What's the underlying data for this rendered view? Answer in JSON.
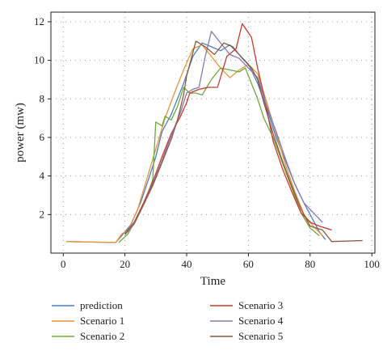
{
  "chart_data": {
    "type": "line",
    "xlabel": "Time",
    "ylabel": "power (mw)",
    "xlim": [
      -4,
      101
    ],
    "ylim": [
      0.0,
      12.5
    ],
    "xticks": [
      0,
      20,
      40,
      60,
      80,
      100
    ],
    "yticks": [
      2,
      4,
      6,
      8,
      10,
      12
    ],
    "grid": "dotted",
    "legend_position": "bottom",
    "series": [
      {
        "name": "prediction",
        "color": "#4a7fc4",
        "points": [
          [
            1,
            0.6
          ],
          [
            17,
            0.55
          ],
          [
            20,
            1.1
          ],
          [
            22,
            1.5
          ],
          [
            25,
            2.6
          ],
          [
            28,
            4.0
          ],
          [
            30,
            5.0
          ],
          [
            32,
            6.3
          ],
          [
            35,
            7.2
          ],
          [
            37,
            8.0
          ],
          [
            39,
            8.8
          ],
          [
            42,
            10.2
          ],
          [
            45,
            10.9
          ],
          [
            48,
            10.7
          ],
          [
            51,
            10.5
          ],
          [
            54,
            10.8
          ],
          [
            57,
            10.3
          ],
          [
            60,
            9.8
          ],
          [
            63,
            8.8
          ],
          [
            66,
            7.5
          ],
          [
            69,
            6.0
          ],
          [
            72,
            4.8
          ],
          [
            75,
            3.6
          ],
          [
            78,
            2.6
          ],
          [
            80,
            2.0
          ],
          [
            83,
            1.1
          ],
          [
            85,
            0.7
          ]
        ]
      },
      {
        "name": "Scenario 1",
        "color": "#e8943a",
        "points": [
          [
            1,
            0.6
          ],
          [
            17,
            0.55
          ],
          [
            19,
            1.0
          ],
          [
            21,
            1.2
          ],
          [
            24,
            2.2
          ],
          [
            27,
            3.8
          ],
          [
            30,
            5.4
          ],
          [
            33,
            7.0
          ],
          [
            36,
            8.3
          ],
          [
            39,
            9.5
          ],
          [
            42,
            10.6
          ],
          [
            45,
            10.8
          ],
          [
            48,
            10.2
          ],
          [
            51,
            9.6
          ],
          [
            54,
            9.1
          ],
          [
            57,
            9.5
          ],
          [
            60,
            9.8
          ],
          [
            63,
            9.3
          ],
          [
            66,
            7.8
          ],
          [
            69,
            6.2
          ],
          [
            72,
            4.6
          ],
          [
            75,
            3.2
          ],
          [
            78,
            2.0
          ],
          [
            81,
            1.4
          ],
          [
            84,
            0.9
          ]
        ]
      },
      {
        "name": "Scenario 2",
        "color": "#6fa83e",
        "points": [
          [
            18,
            0.55
          ],
          [
            21,
            1.0
          ],
          [
            24,
            1.9
          ],
          [
            27,
            2.9
          ],
          [
            29,
            3.8
          ],
          [
            30,
            6.8
          ],
          [
            32,
            6.6
          ],
          [
            33,
            7.1
          ],
          [
            35,
            6.9
          ],
          [
            37,
            7.6
          ],
          [
            39,
            8.6
          ],
          [
            41,
            8.3
          ],
          [
            43,
            8.3
          ],
          [
            45,
            8.2
          ],
          [
            48,
            9.0
          ],
          [
            51,
            9.6
          ],
          [
            54,
            9.5
          ],
          [
            57,
            9.4
          ],
          [
            59,
            9.6
          ],
          [
            61,
            8.8
          ],
          [
            63,
            8.0
          ],
          [
            65,
            7.0
          ],
          [
            68,
            6.0
          ],
          [
            71,
            4.7
          ],
          [
            74,
            3.4
          ],
          [
            77,
            2.1
          ],
          [
            80,
            1.3
          ],
          [
            83,
            0.9
          ]
        ]
      },
      {
        "name": "Scenario 3",
        "color": "#cc3a2c",
        "points": [
          [
            20,
            1.0
          ],
          [
            23,
            1.6
          ],
          [
            26,
            2.6
          ],
          [
            29,
            3.7
          ],
          [
            32,
            5.0
          ],
          [
            35,
            6.2
          ],
          [
            38,
            7.1
          ],
          [
            40,
            7.8
          ],
          [
            41,
            8.3
          ],
          [
            44,
            8.5
          ],
          [
            47,
            8.6
          ],
          [
            50,
            8.6
          ],
          [
            53,
            10.2
          ],
          [
            56,
            10.6
          ],
          [
            58,
            11.9
          ],
          [
            61,
            11.2
          ],
          [
            63,
            9.6
          ],
          [
            65,
            8.2
          ],
          [
            68,
            5.8
          ],
          [
            71,
            4.4
          ],
          [
            74,
            3.2
          ],
          [
            77,
            2.1
          ],
          [
            80,
            1.6
          ],
          [
            83,
            1.4
          ],
          [
            87,
            1.2
          ]
        ]
      },
      {
        "name": "Scenario 4",
        "color": "#8878b8",
        "points": [
          [
            20,
            0.95
          ],
          [
            23,
            1.5
          ],
          [
            26,
            2.5
          ],
          [
            29,
            3.6
          ],
          [
            32,
            4.8
          ],
          [
            35,
            6.1
          ],
          [
            38,
            7.3
          ],
          [
            40,
            8.3
          ],
          [
            42,
            8.5
          ],
          [
            44,
            8.6
          ],
          [
            46,
            10.2
          ],
          [
            48,
            11.5
          ],
          [
            51,
            10.9
          ],
          [
            54,
            10.3
          ],
          [
            57,
            10.1
          ],
          [
            60,
            9.6
          ],
          [
            63,
            9.1
          ],
          [
            66,
            7.6
          ],
          [
            69,
            6.3
          ],
          [
            72,
            4.9
          ],
          [
            75,
            3.6
          ],
          [
            78,
            2.6
          ],
          [
            81,
            2.1
          ],
          [
            84,
            1.6
          ]
        ]
      },
      {
        "name": "Scenario 5",
        "color": "#8b5a3c",
        "points": [
          [
            20,
            1.0
          ],
          [
            23,
            1.6
          ],
          [
            26,
            2.5
          ],
          [
            29,
            3.5
          ],
          [
            32,
            4.7
          ],
          [
            35,
            5.9
          ],
          [
            37,
            6.9
          ],
          [
            39,
            8.2
          ],
          [
            40,
            9.2
          ],
          [
            43,
            11.0
          ],
          [
            46,
            10.7
          ],
          [
            49,
            10.3
          ],
          [
            52,
            10.9
          ],
          [
            55,
            10.7
          ],
          [
            58,
            10.1
          ],
          [
            61,
            9.6
          ],
          [
            63,
            9.0
          ],
          [
            65,
            7.8
          ],
          [
            68,
            6.2
          ],
          [
            71,
            4.8
          ],
          [
            74,
            3.5
          ],
          [
            77,
            2.3
          ],
          [
            80,
            1.4
          ],
          [
            84,
            1.2
          ],
          [
            87,
            0.6
          ],
          [
            97,
            0.65
          ]
        ]
      }
    ]
  }
}
